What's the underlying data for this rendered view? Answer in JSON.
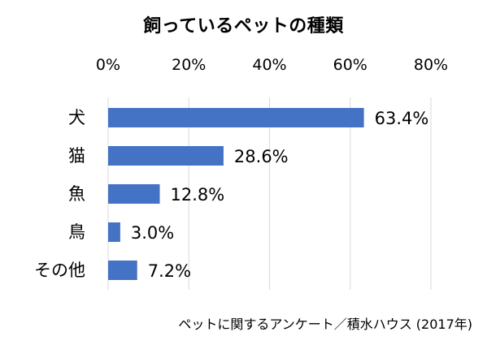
{
  "chart_data": {
    "type": "bar",
    "orientation": "horizontal",
    "title": "飼っているペットの種類",
    "categories": [
      "犬",
      "猫",
      "魚",
      "鳥",
      "その他"
    ],
    "values": [
      63.4,
      28.6,
      12.8,
      3.0,
      7.2
    ],
    "value_labels": [
      "63.4%",
      "28.6%",
      "12.8%",
      "3.0%",
      "7.2%"
    ],
    "xlim": [
      0,
      80
    ],
    "xticks": [
      0,
      20,
      40,
      60,
      80
    ],
    "xtick_labels": [
      "0%",
      "20%",
      "40%",
      "60%",
      "80%"
    ],
    "axis_position": "top",
    "grid": true,
    "legend": "none",
    "bar_color": "#4472C4",
    "grid_color": "#D9D9D9",
    "source": "ペットに関するアンケート／積水ハウス (2017年)"
  }
}
